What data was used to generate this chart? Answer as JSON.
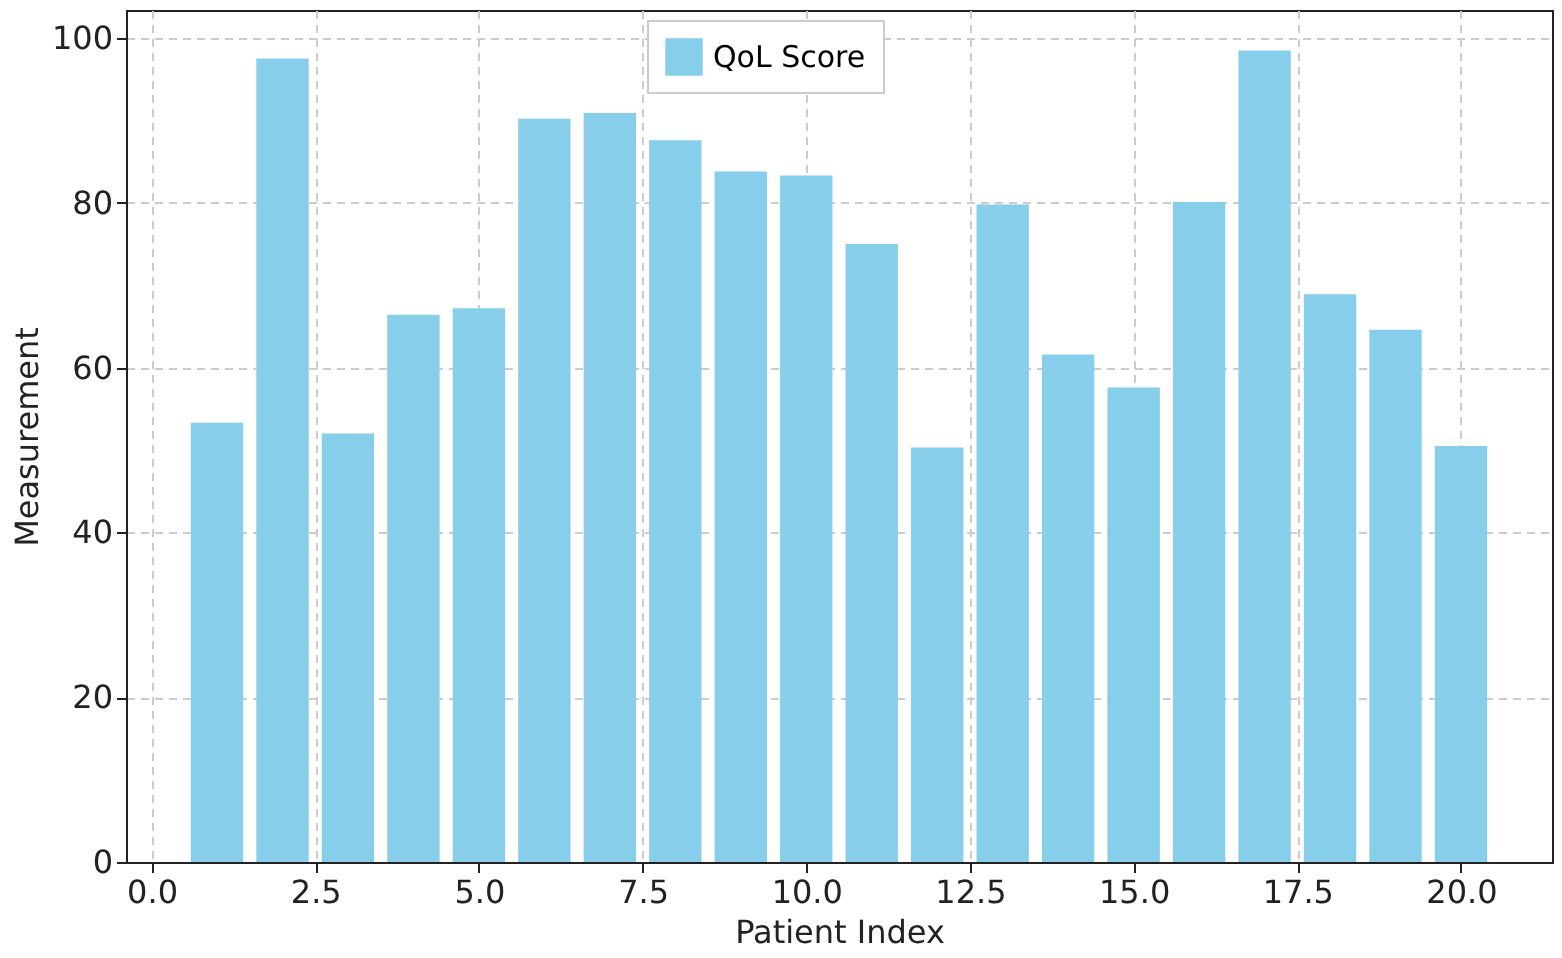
{
  "chart_data": {
    "type": "bar",
    "xlabel": "Patient Index",
    "ylabel": "Measurement",
    "x": [
      1,
      2,
      3,
      4,
      5,
      6,
      7,
      8,
      9,
      10,
      11,
      12,
      13,
      14,
      15,
      16,
      17,
      18,
      19,
      20
    ],
    "series": [
      {
        "name": "QoL Score",
        "color": "#87ceeb",
        "values": [
          53.3,
          97.5,
          52.0,
          66.4,
          67.2,
          90.2,
          90.9,
          87.6,
          83.8,
          83.3,
          75.0,
          50.3,
          79.8,
          61.6,
          57.6,
          80.1,
          98.5,
          68.9,
          64.6,
          50.5
        ]
      }
    ],
    "xlim": [
      -0.39,
      21.39
    ],
    "ylim": [
      0,
      103.4
    ],
    "xticks": [
      {
        "value": 0,
        "label": "0.0"
      },
      {
        "value": 2.5,
        "label": "2.5"
      },
      {
        "value": 5,
        "label": "5.0"
      },
      {
        "value": 7.5,
        "label": "7.5"
      },
      {
        "value": 10,
        "label": "10.0"
      },
      {
        "value": 12.5,
        "label": "12.5"
      },
      {
        "value": 15,
        "label": "15.0"
      },
      {
        "value": 17.5,
        "label": "17.5"
      },
      {
        "value": 20,
        "label": "20.0"
      }
    ],
    "yticks": [
      0,
      20,
      40,
      60,
      80,
      100
    ],
    "grid": true,
    "legend": "top"
  }
}
